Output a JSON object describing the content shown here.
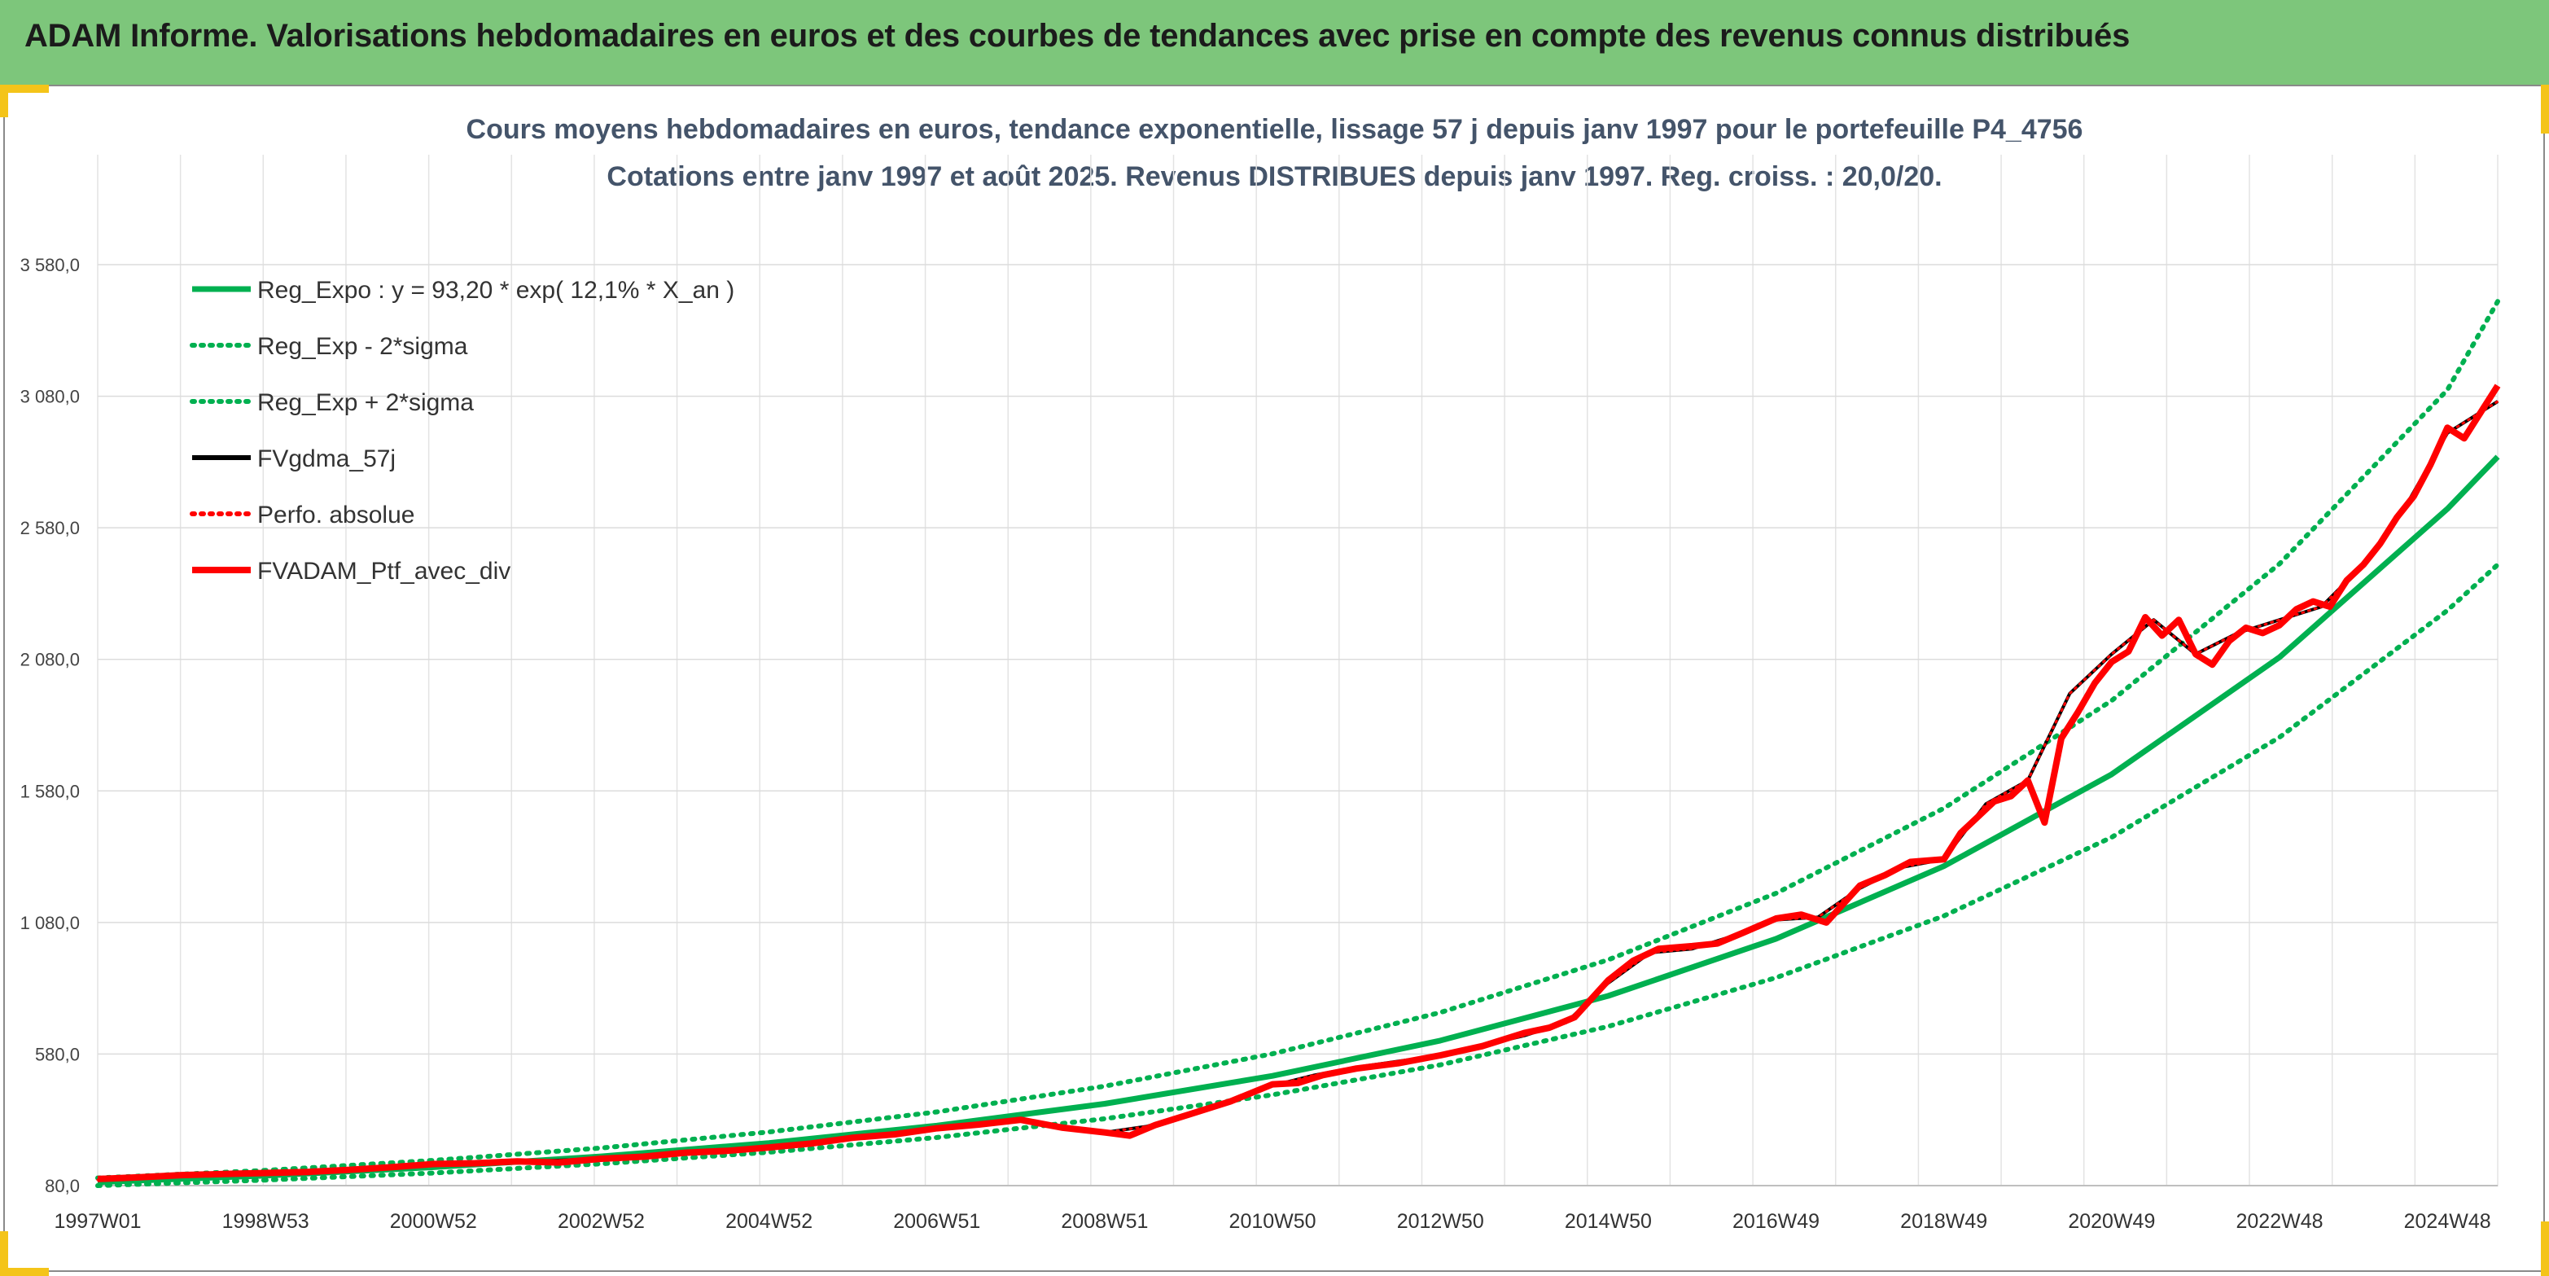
{
  "banner": {
    "title": "ADAM Informe. Valorisations hebdomadaires en euros et des courbes de tendances avec prise en compte des revenus connus distribués"
  },
  "colors": {
    "banner": "#7dc67b",
    "accent": "#f4c419",
    "reg_expo": "#00b050",
    "band": "#00b050",
    "fvgdma": "#000000",
    "portfolio": "#ff0000",
    "title_text": "#44546a"
  },
  "chart_data": {
    "type": "line",
    "title": "Cours moyens hebdomadaires en euros, tendance exponentielle, lissage 57 j depuis janv 1997 pour le portefeuille P4_4756",
    "subtitle": "Cotations entre janv 1997 et août 2025. Revenus DISTRIBUES depuis janv 1997. Reg. croiss. : 20,0/20.",
    "xlabel": "",
    "ylabel": "",
    "ylim": [
      80,
      3580
    ],
    "xlim": [
      1997.0,
      2025.6
    ],
    "grid": true,
    "legend_position": "top-left",
    "y_ticks": [
      "80,0",
      "580,0",
      "1 080,0",
      "1 580,0",
      "2 080,0",
      "2 580,0",
      "3 080,0",
      "3 580,0"
    ],
    "y_tick_values": [
      80,
      580,
      1080,
      1580,
      2080,
      2580,
      3080,
      3580
    ],
    "x_ticks": [
      "1997W01",
      "1998W53",
      "2000W52",
      "2002W52",
      "2004W52",
      "2006W51",
      "2008W51",
      "2010W50",
      "2012W50",
      "2014W50",
      "2016W49",
      "2018W49",
      "2020W49",
      "2022W48",
      "2024W48"
    ],
    "x_tick_values": [
      1997.0,
      1999.0,
      2001.0,
      2003.0,
      2005.0,
      2007.0,
      2009.0,
      2011.0,
      2013.0,
      2015.0,
      2017.0,
      2019.0,
      2021.0,
      2023.0,
      2025.0
    ],
    "series": [
      {
        "name": "Reg_Expo : y = 93,20 * exp( 12,1% *  X_an )",
        "style": "solid",
        "color": "#00b050",
        "x": [
          1997,
          1999,
          2001,
          2003,
          2005,
          2007,
          2009,
          2011,
          2013,
          2015,
          2017,
          2019,
          2021,
          2023,
          2025,
          2025.6
        ],
        "y": [
          93,
          118,
          150,
          191,
          242,
          308,
          391,
          497,
          631,
          801,
          1018,
          1294,
          1643,
          2088,
          2652,
          2850
        ]
      },
      {
        "name": "Reg_Exp - 2*sigma",
        "style": "dotted",
        "color": "#00b050",
        "x": [
          1997,
          1999,
          2001,
          2003,
          2005,
          2007,
          2009,
          2011,
          2013,
          2015,
          2017,
          2019,
          2021,
          2023,
          2025,
          2025.6
        ],
        "y": [
          80,
          101,
          128,
          163,
          207,
          263,
          334,
          425,
          539,
          685,
          870,
          1105,
          1404,
          1784,
          2266,
          2440
        ]
      },
      {
        "name": "Reg_Exp + 2*sigma",
        "style": "dotted",
        "color": "#00b050",
        "x": [
          1997,
          1999,
          2001,
          2003,
          2005,
          2007,
          2009,
          2011,
          2013,
          2015,
          2017,
          2019,
          2021,
          2023,
          2025,
          2025.6
        ],
        "y": [
          109,
          138,
          176,
          223,
          284,
          360,
          458,
          581,
          738,
          938,
          1191,
          1514,
          1923,
          2443,
          3104,
          3440
        ]
      },
      {
        "name": "FVgdma_57j",
        "style": "solid",
        "color": "#000000",
        "x": [
          1997,
          1998,
          1999,
          2000,
          2001,
          2002,
          2003,
          2004,
          2005,
          2006,
          2007,
          2008,
          2009,
          2009.5,
          2010,
          2011,
          2011.5,
          2012,
          2013,
          2014,
          2014.5,
          2015,
          2015.5,
          2016,
          2016.5,
          2017,
          2017.5,
          2018,
          2018.5,
          2019,
          2019.5,
          2020,
          2020.5,
          2021,
          2021.5,
          2022,
          2022.5,
          2023,
          2023.5,
          2024,
          2024.5,
          2025,
          2025.6
        ],
        "y": [
          102,
          118,
          125,
          138,
          160,
          170,
          182,
          205,
          225,
          262,
          295,
          325,
          282,
          305,
          350,
          460,
          500,
          530,
          575,
          650,
          700,
          850,
          965,
          980,
          1030,
          1090,
          1100,
          1210,
          1290,
          1320,
          1530,
          1620,
          1950,
          2100,
          2230,
          2100,
          2180,
          2230,
          2280,
          2440,
          2660,
          2940,
          3060
        ]
      },
      {
        "name": "Perfo. absolue",
        "style": "dotted",
        "color": "#ff0000",
        "x": [
          1997,
          1998,
          1999,
          2000,
          2001,
          2002,
          2003,
          2004,
          2005,
          2006,
          2007,
          2008,
          2009,
          2009.5,
          2010,
          2011,
          2011.5,
          2012,
          2013,
          2014,
          2014.5,
          2015,
          2015.5,
          2016,
          2016.5,
          2017,
          2017.5,
          2018,
          2018.5,
          2019,
          2019.5,
          2020,
          2020.5,
          2021,
          2021.5,
          2022,
          2022.5,
          2023,
          2023.5,
          2024,
          2024.5,
          2025,
          2025.6
        ],
        "y": [
          102,
          118,
          125,
          138,
          160,
          170,
          182,
          205,
          225,
          262,
          295,
          325,
          282,
          305,
          350,
          460,
          500,
          530,
          575,
          650,
          700,
          850,
          965,
          980,
          1030,
          1090,
          1100,
          1210,
          1290,
          1320,
          1530,
          1620,
          1950,
          2100,
          2230,
          2100,
          2180,
          2230,
          2280,
          2440,
          2660,
          2940,
          3060
        ]
      },
      {
        "name": "FVADAM_Ptf_avec_div",
        "style": "solid",
        "color": "#ff0000",
        "x": [
          1997,
          1997.5,
          1998,
          1998.5,
          1999,
          1999.5,
          2000,
          2000.5,
          2001,
          2001.5,
          2002,
          2002.5,
          2003,
          2003.5,
          2004,
          2004.5,
          2005,
          2005.5,
          2006,
          2006.5,
          2007,
          2007.5,
          2008,
          2008.5,
          2009,
          2009.3,
          2009.6,
          2010,
          2010.5,
          2011,
          2011.3,
          2011.6,
          2012,
          2012.5,
          2013,
          2013.5,
          2014,
          2014.3,
          2014.6,
          2015,
          2015.3,
          2015.6,
          2016,
          2016.3,
          2016.6,
          2017,
          2017.3,
          2017.6,
          2018,
          2018.3,
          2018.6,
          2019,
          2019.2,
          2019.4,
          2019.6,
          2019.8,
          2020,
          2020.2,
          2020.4,
          2020.6,
          2020.8,
          2021,
          2021.2,
          2021.4,
          2021.6,
          2021.8,
          2022,
          2022.2,
          2022.4,
          2022.6,
          2022.8,
          2023,
          2023.2,
          2023.4,
          2023.6,
          2023.8,
          2024,
          2024.2,
          2024.4,
          2024.6,
          2024.8,
          2025,
          2025.2,
          2025.4,
          2025.6
        ],
        "y": [
          105,
          112,
          120,
          124,
          128,
          132,
          140,
          150,
          162,
          165,
          172,
          168,
          182,
          190,
          205,
          212,
          225,
          240,
          262,
          275,
          298,
          312,
          330,
          300,
          282,
          270,
          310,
          350,
          400,
          465,
          470,
          500,
          525,
          545,
          575,
          610,
          660,
          680,
          720,
          860,
          935,
          980,
          990,
          1000,
          1040,
          1095,
          1110,
          1080,
          1220,
          1260,
          1310,
          1320,
          1420,
          1480,
          1540,
          1560,
          1620,
          1460,
          1780,
          1880,
          1990,
          2070,
          2110,
          2240,
          2170,
          2230,
          2100,
          2060,
          2150,
          2200,
          2180,
          2210,
          2270,
          2300,
          2280,
          2380,
          2440,
          2520,
          2620,
          2700,
          2820,
          2960,
          2920,
          3020,
          3120
        ]
      }
    ]
  }
}
